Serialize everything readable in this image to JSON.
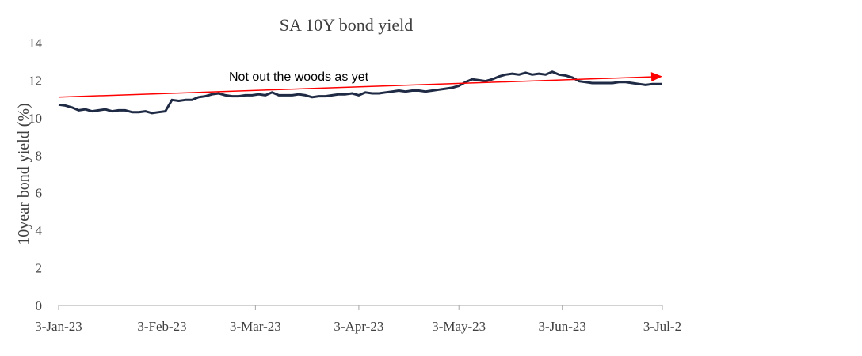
{
  "chart_data": {
    "type": "line",
    "title": "SA 10Y  bond yield",
    "xlabel": "",
    "ylabel": "10year bond yield (%)",
    "ylim": [
      0,
      14
    ],
    "y_ticks": [
      0,
      2,
      4,
      6,
      8,
      10,
      12,
      14
    ],
    "x_ticks": [
      "3-Jan-23",
      "3-Feb-23",
      "3-Mar-23",
      "3-Apr-23",
      "3-May-23",
      "3-Jun-23",
      "3-Jul-2"
    ],
    "x_tick_dates": [
      "2023-01-03",
      "2023-02-03",
      "2023-03-03",
      "2023-04-03",
      "2023-05-03",
      "2023-06-03",
      "2023-07-03"
    ],
    "xlim": [
      "2023-01-03",
      "2023-07-03"
    ],
    "grid": false,
    "colors": {
      "line": "#1f2a44",
      "trend": "#ff0000",
      "axis": "#a6a6a6"
    },
    "series": [
      {
        "x": [
          "2023-01-03",
          "2023-01-05",
          "2023-01-07",
          "2023-01-09",
          "2023-01-11",
          "2023-01-13",
          "2023-01-15",
          "2023-01-17",
          "2023-01-19",
          "2023-01-21",
          "2023-01-23",
          "2023-01-25",
          "2023-01-27",
          "2023-01-29",
          "2023-01-31",
          "2023-02-02",
          "2023-02-04",
          "2023-02-06",
          "2023-02-08",
          "2023-02-10",
          "2023-02-12",
          "2023-02-14",
          "2023-02-16",
          "2023-02-18",
          "2023-02-20",
          "2023-02-22",
          "2023-02-24",
          "2023-02-26",
          "2023-02-28",
          "2023-03-02",
          "2023-03-04",
          "2023-03-06",
          "2023-03-08",
          "2023-03-10",
          "2023-03-12",
          "2023-03-14",
          "2023-03-16",
          "2023-03-18",
          "2023-03-20",
          "2023-03-22",
          "2023-03-24",
          "2023-03-26",
          "2023-03-28",
          "2023-03-30",
          "2023-04-01",
          "2023-04-03",
          "2023-04-05",
          "2023-04-07",
          "2023-04-09",
          "2023-04-11",
          "2023-04-13",
          "2023-04-15",
          "2023-04-17",
          "2023-04-19",
          "2023-04-21",
          "2023-04-23",
          "2023-04-25",
          "2023-04-27",
          "2023-04-29",
          "2023-05-01",
          "2023-05-03",
          "2023-05-05",
          "2023-05-07",
          "2023-05-09",
          "2023-05-11",
          "2023-05-13",
          "2023-05-15",
          "2023-05-17",
          "2023-05-19",
          "2023-05-21",
          "2023-05-23",
          "2023-05-25",
          "2023-05-27",
          "2023-05-29",
          "2023-05-31",
          "2023-06-02",
          "2023-06-04",
          "2023-06-06",
          "2023-06-08",
          "2023-06-10",
          "2023-06-12",
          "2023-06-14",
          "2023-06-16",
          "2023-06-18",
          "2023-06-20",
          "2023-06-22",
          "2023-06-24",
          "2023-06-26",
          "2023-06-28",
          "2023-06-30",
          "2023-07-02",
          "2023-07-03"
        ],
        "values": [
          10.7,
          10.65,
          10.55,
          10.4,
          10.45,
          10.35,
          10.4,
          10.45,
          10.35,
          10.4,
          10.4,
          10.3,
          10.3,
          10.35,
          10.25,
          10.3,
          10.35,
          10.95,
          10.9,
          10.95,
          10.95,
          11.1,
          11.15,
          11.25,
          11.3,
          11.2,
          11.15,
          11.15,
          11.2,
          11.2,
          11.25,
          11.2,
          11.35,
          11.2,
          11.2,
          11.2,
          11.25,
          11.2,
          11.1,
          11.15,
          11.15,
          11.2,
          11.25,
          11.25,
          11.3,
          11.2,
          11.35,
          11.3,
          11.3,
          11.35,
          11.4,
          11.45,
          11.4,
          11.45,
          11.45,
          11.4,
          11.45,
          11.5,
          11.55,
          11.6,
          11.7,
          11.9,
          12.05,
          12.0,
          11.95,
          12.05,
          12.2,
          12.3,
          12.35,
          12.3,
          12.4,
          12.3,
          12.35,
          12.3,
          12.45,
          12.3,
          12.25,
          12.15,
          11.95,
          11.9,
          11.85,
          11.85,
          11.85,
          11.85,
          11.9,
          11.9,
          11.85,
          11.8,
          11.75,
          11.8,
          11.8,
          11.8
        ]
      }
    ],
    "trendline": {
      "start": [
        "2023-01-03",
        11.1
      ],
      "end": [
        "2023-07-03",
        12.2
      ]
    },
    "annotations": [
      {
        "text": "Not out the woods as yet"
      }
    ]
  }
}
